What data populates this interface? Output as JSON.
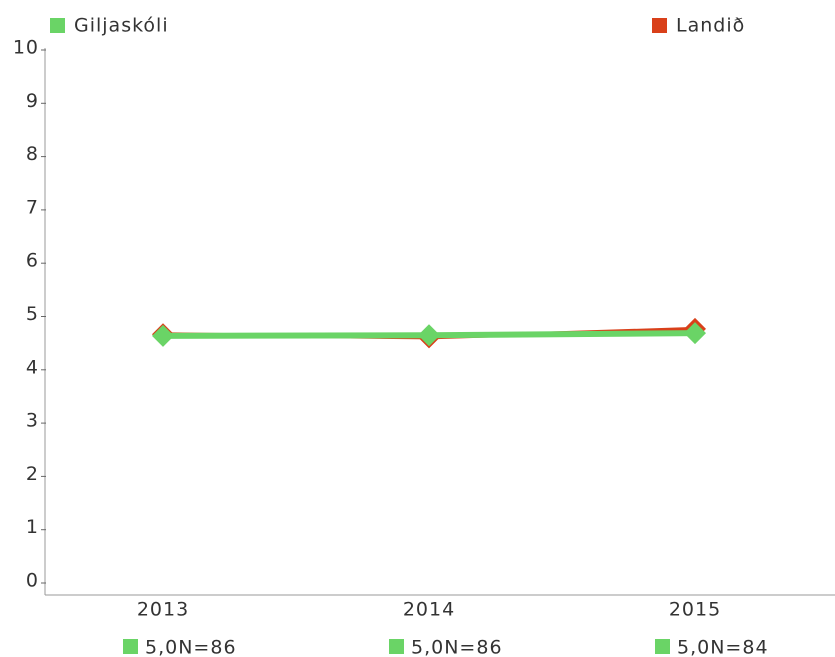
{
  "chart_data": {
    "type": "line",
    "categories": [
      "2013",
      "2014",
      "2015"
    ],
    "category_notes": [
      "5,0N=86",
      "5,0N=86",
      "5,0N=84"
    ],
    "note_color": "#6ad466",
    "series": [
      {
        "name": "Giljaskóli",
        "color": "#6ad466",
        "values": [
          4.6,
          4.61,
          4.65
        ]
      },
      {
        "name": "Landið",
        "color": "#d9401a",
        "values": [
          4.63,
          4.57,
          4.73
        ]
      }
    ],
    "ylim": [
      0,
      10
    ],
    "yticks": [
      0,
      1,
      2,
      3,
      4,
      5,
      6,
      7,
      8,
      9,
      10
    ],
    "legend": "top"
  }
}
